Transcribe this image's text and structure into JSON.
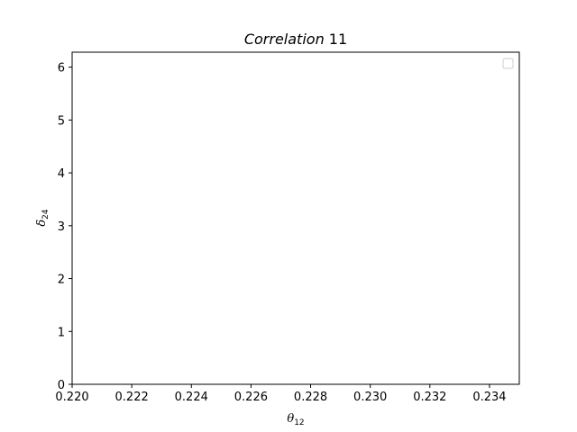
{
  "chart_data": {
    "type": "scatter",
    "title": {
      "italic": "Correlation",
      "suffix": " 11"
    },
    "xlabel": {
      "base": "θ",
      "subscript": "12"
    },
    "ylabel": {
      "base": "δ",
      "subscript": "24"
    },
    "xlim": [
      0.22,
      0.235
    ],
    "ylim": [
      0,
      6.283185307
    ],
    "xticks": [
      0.22,
      0.222,
      0.224,
      0.226,
      0.228,
      0.23,
      0.232,
      0.234
    ],
    "xtick_labels": [
      "0.220",
      "0.222",
      "0.224",
      "0.226",
      "0.228",
      "0.230",
      "0.232",
      "0.234"
    ],
    "yticks": [
      0,
      1,
      2,
      3,
      4,
      5,
      6
    ],
    "ytick_labels": [
      "0",
      "1",
      "2",
      "3",
      "4",
      "5",
      "6"
    ],
    "series": [],
    "grid": false,
    "legend": {
      "placement": "top-right",
      "entries": []
    }
  }
}
